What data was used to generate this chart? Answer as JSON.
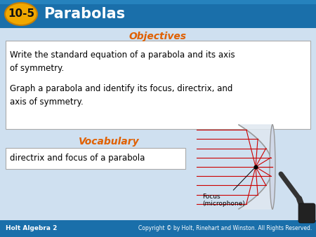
{
  "bg_color": "#cfe0f0",
  "header_bg": "#1a6faa",
  "badge_color": "#f0a800",
  "header_number": "10-5",
  "header_title": "Parabolas",
  "objectives_label": "Objectives",
  "objectives_color": "#e06000",
  "objectives_text1": "Write the standard equation of a parabola and its axis\nof symmetry.",
  "objectives_text2": "Graph a parabola and identify its focus, directrix, and\naxis of symmetry.",
  "vocabulary_label": "Vocabulary",
  "vocabulary_color": "#e06000",
  "vocab_item": "directrix and focus of a parabola",
  "footer_left": "Holt Algebra 2",
  "footer_right": "Copyright © by Holt, Rinehart and Winston. All Rights Reserved.",
  "footer_bg": "#1a6faa",
  "focus_label": "Focus\n(microphone)"
}
